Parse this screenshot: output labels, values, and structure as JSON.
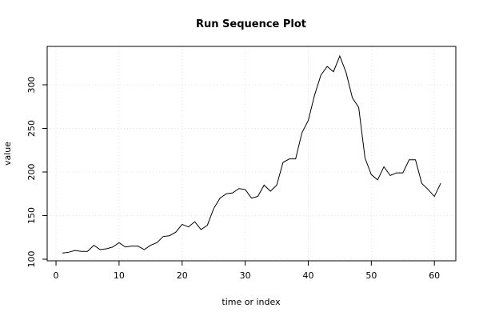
{
  "chart_data": {
    "type": "line",
    "title": "Run Sequence Plot",
    "x_label": "time or index",
    "y_label": "value",
    "x": [
      1,
      2,
      3,
      4,
      5,
      6,
      7,
      8,
      9,
      10,
      11,
      12,
      13,
      14,
      15,
      16,
      17,
      18,
      19,
      20,
      21,
      22,
      23,
      24,
      25,
      26,
      27,
      28,
      29,
      30,
      31,
      32,
      33,
      34,
      35,
      36,
      37,
      38,
      39,
      40,
      41,
      42,
      43,
      44,
      45,
      46,
      47,
      48,
      49,
      50,
      51,
      52,
      53,
      54,
      55,
      56,
      57,
      58,
      59,
      60,
      61
    ],
    "values": [
      107,
      108,
      110,
      109,
      109,
      116,
      111,
      112,
      114,
      119,
      114,
      115,
      115,
      111,
      116,
      119,
      126,
      127,
      131,
      140,
      137,
      143,
      134,
      139,
      158,
      170,
      175,
      176,
      181,
      180,
      170,
      172,
      185,
      178,
      185,
      211,
      215,
      215,
      245,
      259,
      288,
      311,
      321,
      315,
      333,
      314,
      285,
      274,
      216,
      197,
      191,
      206,
      196,
      199,
      199,
      214,
      214,
      187,
      180,
      172,
      187
    ],
    "color": "#000000",
    "xlim": [
      -1.4,
      63.4
    ],
    "xticks": [
      0,
      10,
      20,
      30,
      40,
      50,
      60
    ],
    "ylim": [
      98.2,
      344
    ],
    "yticks": [
      100,
      150,
      200,
      250,
      300
    ],
    "grid": true
  }
}
